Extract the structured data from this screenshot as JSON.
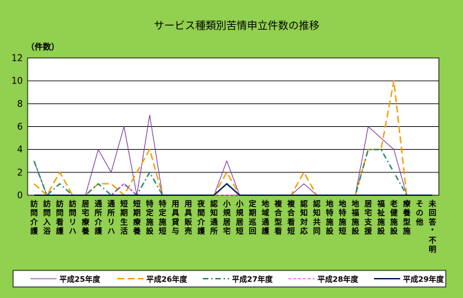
{
  "chart_data": {
    "type": "line",
    "title": "サービス種類別苦情申立件数の推移",
    "ylabel": "（件数）",
    "xlabel": "",
    "ylim": [
      0,
      12
    ],
    "yticks": [
      0,
      2,
      4,
      6,
      8,
      10,
      12
    ],
    "grid": true,
    "legend_position": "bottom",
    "categories": [
      "訪問介護",
      "訪問入浴",
      "訪問看護",
      "訪問リハ",
      "居宅療養",
      "通所介護",
      "通所リハ",
      "短期生活",
      "短期療養",
      "特定施設",
      "特定施短",
      "用具貸与",
      "用具販売",
      "夜間介護",
      "認知通所",
      "小規居宅",
      "小規居短",
      "定期巡回",
      "地域通護",
      "複合型看",
      "複合看短",
      "認知対応",
      "認知共同",
      "地特施設",
      "地特施短",
      "地福施設",
      "居宅支援",
      "福祉施設",
      "老健施設",
      "療養型施",
      "その他",
      "未回答・不明"
    ],
    "series": [
      {
        "name": "平成25年度",
        "color": "#7030a0",
        "dash": "solid",
        "values": [
          3,
          0,
          0,
          0,
          0,
          4,
          2,
          6,
          0,
          7,
          0,
          0,
          0,
          0,
          0,
          3,
          0,
          0,
          0,
          0,
          0,
          1,
          0,
          0,
          0,
          0,
          6,
          5,
          4,
          0,
          0,
          0
        ]
      },
      {
        "name": "平成26年度",
        "color": "#f59d00",
        "dash": "long",
        "values": [
          1,
          0,
          2,
          0,
          0,
          1,
          1,
          0,
          2,
          4,
          0,
          0,
          0,
          0,
          0,
          2,
          0,
          0,
          0,
          0,
          0,
          2,
          0,
          0,
          0,
          0,
          4,
          4,
          10,
          0,
          0,
          0
        ]
      },
      {
        "name": "平成27年度",
        "color": "#218a61",
        "dash": "dashdot",
        "values": [
          3,
          0,
          1,
          0,
          0,
          1,
          0,
          1,
          0,
          2,
          0,
          0,
          0,
          0,
          0,
          1,
          0,
          0,
          0,
          0,
          0,
          0,
          0,
          0,
          0,
          0,
          4,
          4,
          2,
          0,
          0,
          0
        ]
      },
      {
        "name": "平成28年度",
        "color": "#ff00ff",
        "dash": "short",
        "values": [
          0,
          0,
          0,
          0,
          0,
          0,
          0,
          1,
          0,
          0,
          0,
          0,
          0,
          0,
          0,
          0,
          0,
          0,
          0,
          0,
          0,
          0,
          0,
          0,
          0,
          0,
          0,
          0,
          0,
          0,
          0,
          0
        ]
      },
      {
        "name": "平成29年度",
        "color": "#002060",
        "dash": "solid",
        "values": [
          0,
          0,
          0,
          0,
          0,
          0,
          0,
          0,
          0,
          0,
          0,
          0,
          0,
          0,
          0,
          1,
          0,
          0,
          0,
          0,
          0,
          0,
          0,
          0,
          0,
          0,
          0,
          0,
          0,
          0,
          0,
          0
        ]
      }
    ]
  }
}
